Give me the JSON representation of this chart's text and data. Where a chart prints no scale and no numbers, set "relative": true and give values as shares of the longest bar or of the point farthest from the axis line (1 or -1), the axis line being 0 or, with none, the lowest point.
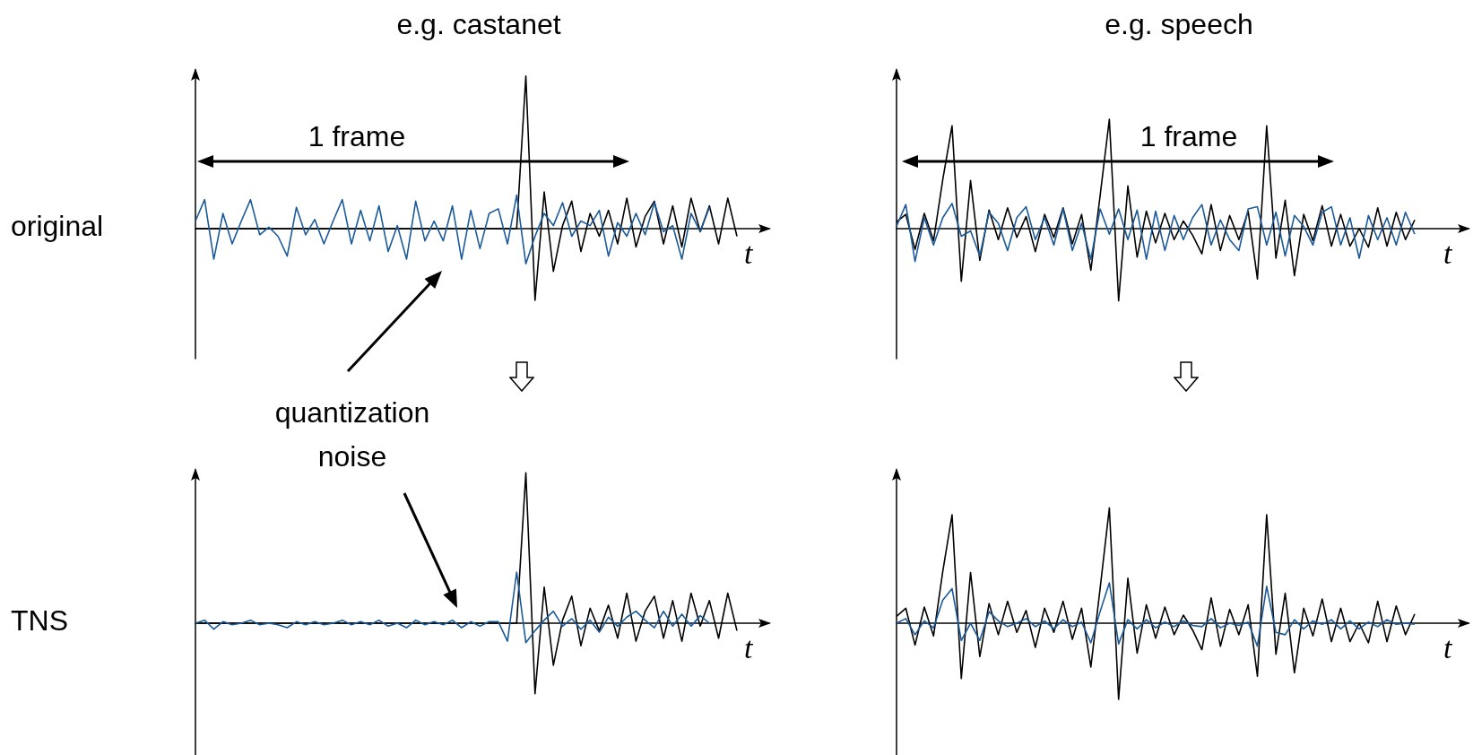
{
  "chart_data": [
    {
      "type": "line",
      "title": "e.g. castanet",
      "ylabel": "original",
      "xlabel": "t",
      "annotations": [
        "1 frame",
        "quantization noise"
      ],
      "relative": true,
      "marker": "none",
      "grid": false,
      "categories": [
        null,
        null,
        null,
        null,
        null,
        null,
        null,
        null,
        null,
        null,
        null,
        null,
        null,
        null,
        null,
        null,
        null,
        null,
        null,
        null,
        null,
        null,
        null,
        null,
        null,
        null,
        null,
        null,
        null,
        null,
        null,
        null,
        null,
        null,
        null,
        null,
        null,
        null,
        null,
        null,
        null,
        null,
        null,
        null,
        null,
        null,
        null,
        null,
        null,
        null,
        null,
        null,
        null,
        null,
        null,
        null,
        null,
        null,
        null,
        null
      ],
      "series": [
        {
          "color": "#000000",
          "values": [
            0,
            0,
            0,
            0,
            0,
            0,
            0,
            0,
            0,
            0,
            0,
            0,
            0,
            0,
            0,
            0,
            0,
            0,
            0,
            0,
            0,
            0,
            0,
            0,
            0,
            0,
            0,
            0,
            0,
            0,
            0,
            0,
            0,
            0,
            0,
            0,
            1,
            -0.47,
            0.24,
            -0.28,
            0.02,
            0.18,
            -0.15,
            0.1,
            -0.05,
            0.12,
            -0.1,
            0.2,
            -0.12,
            0.08,
            0.18,
            -0.1,
            0.15,
            -0.12,
            0.2,
            -0.02,
            0.15,
            -0.1,
            0.2,
            -0.05
          ]
        },
        {
          "color": "#1a5a9a",
          "values": [
            0.05,
            0.19,
            -0.2,
            0.1,
            -0.1,
            0.05,
            0.19,
            -0.04,
            0.01,
            -0.05,
            -0.18,
            0.14,
            -0.04,
            0.06,
            -0.1,
            0.05,
            0.19,
            -0.1,
            0.12,
            -0.08,
            0.15,
            -0.15,
            0.02,
            -0.2,
            0.18,
            -0.08,
            0.05,
            -0.08,
            0.15,
            -0.2,
            0.12,
            -0.13,
            0.1,
            0.13,
            -0.1,
            0.22,
            -0.23,
            -0.05,
            0.1,
            0.02,
            0.17,
            -0.05,
            0.05,
            0.02,
            0.12,
            -0.18,
            0.04,
            -0.05,
            0.1,
            -0.04,
            0.17,
            -0.02,
            0.02,
            -0.2,
            0.1,
            -0.02,
            0.14,
            null,
            null,
            null
          ]
        }
      ]
    },
    {
      "type": "line",
      "title": "e.g. speech",
      "xlabel": "t",
      "annotations": [
        "1 frame"
      ],
      "relative": true,
      "marker": "none",
      "grid": false,
      "categories": [
        null,
        null,
        null,
        null,
        null,
        null,
        null,
        null,
        null,
        null,
        null,
        null,
        null,
        null,
        null,
        null,
        null,
        null,
        null,
        null,
        null,
        null,
        null,
        null,
        null,
        null,
        null,
        null,
        null,
        null,
        null,
        null,
        null,
        null,
        null,
        null,
        null,
        null,
        null,
        null,
        null,
        null,
        null,
        null,
        null,
        null,
        null,
        null,
        null,
        null,
        null,
        null,
        null,
        null,
        null,
        null,
        null
      ],
      "series": [
        {
          "color": "#000000",
          "values": [
            0.06,
            0.13,
            -0.19,
            0.14,
            -0.11,
            0.45,
            0.94,
            -0.48,
            0.44,
            -0.29,
            0.17,
            -0.1,
            0.19,
            -0.08,
            0.11,
            -0.21,
            0.13,
            -0.08,
            0.19,
            -0.14,
            0.13,
            -0.38,
            0.3,
            1,
            -0.66,
            0.39,
            -0.26,
            0.16,
            -0.13,
            0.14,
            -0.1,
            0.07,
            -0.06,
            -0.23,
            0.22,
            -0.2,
            0.12,
            -0.1,
            0.16,
            -0.46,
            0.94,
            -0.27,
            0.26,
            -0.43,
            0.13,
            -0.11,
            0.21,
            -0.16,
            0.13,
            -0.16,
            0,
            -0.17,
            0.19,
            -0.16,
            0.15,
            -0.1,
            0.08
          ]
        },
        {
          "color": "#1a5a9a",
          "values": [
            0.02,
            0.22,
            -0.3,
            0.1,
            -0.15,
            0.1,
            0.23,
            -0.07,
            -0.02,
            -0.25,
            0.15,
            0.05,
            -0.2,
            0.1,
            0.2,
            -0.1,
            0.1,
            -0.15,
            0.18,
            -0.2,
            0.05,
            -0.28,
            0.18,
            -0.05,
            0.18,
            -0.1,
            0.17,
            -0.28,
            0.16,
            -0.2,
            0.12,
            -0.1,
            0.1,
            0.22,
            -0.15,
            0.08,
            -0.1,
            -0.2,
            0.18,
            0.2,
            -0.15,
            0.15,
            -0.25,
            0.12,
            0.02,
            -0.15,
            0.15,
            0.2,
            -0.15,
            0.1,
            -0.27,
            0.12,
            -0.1,
            0.1,
            -0.15,
            0.15,
            -0.05
          ]
        }
      ]
    },
    {
      "type": "line",
      "ylabel": "TNS",
      "xlabel": "t",
      "relative": true,
      "marker": "none",
      "grid": false,
      "categories": [
        null,
        null,
        null,
        null,
        null,
        null,
        null,
        null,
        null,
        null,
        null,
        null,
        null,
        null,
        null,
        null,
        null,
        null,
        null,
        null,
        null,
        null,
        null,
        null,
        null,
        null,
        null,
        null,
        null,
        null,
        null,
        null,
        null,
        null,
        null,
        null,
        null,
        null,
        null,
        null,
        null,
        null,
        null,
        null,
        null,
        null,
        null,
        null,
        null,
        null,
        null,
        null,
        null,
        null,
        null,
        null,
        null,
        null,
        null,
        null
      ],
      "series": [
        {
          "color": "#000000",
          "values": [
            0,
            0,
            0,
            0,
            0,
            0,
            0,
            0,
            0,
            0,
            0,
            0,
            0,
            0,
            0,
            0,
            0,
            0,
            0,
            0,
            0,
            0,
            0,
            0,
            0,
            0,
            0,
            0,
            0,
            0,
            0,
            0,
            0,
            0,
            0,
            0,
            1,
            -0.47,
            0.24,
            -0.28,
            0.02,
            0.18,
            -0.15,
            0.1,
            -0.05,
            0.12,
            -0.1,
            0.2,
            -0.12,
            0.08,
            0.18,
            -0.1,
            0.15,
            -0.12,
            0.2,
            -0.02,
            0.15,
            -0.1,
            0.2,
            -0.05
          ]
        },
        {
          "color": "#1a5a9a",
          "values": [
            0,
            0.02,
            -0.04,
            0.01,
            -0.01,
            0,
            0.02,
            -0.01,
            0,
            -0.01,
            -0.03,
            0.01,
            -0.01,
            0.01,
            -0.01,
            0,
            0.02,
            -0.01,
            0.01,
            -0.01,
            0.02,
            -0.02,
            0,
            -0.03,
            0.02,
            -0.01,
            0.01,
            -0.01,
            0.02,
            -0.03,
            0.01,
            -0.02,
            0.01,
            0.01,
            -0.12,
            0.34,
            -0.13,
            -0.05,
            0.02,
            0.08,
            -0.02,
            0.03,
            -0.04,
            0.02,
            -0.06,
            0.04,
            -0.02,
            0.04,
            0.08,
            0.02,
            -0.03,
            0.08,
            -0.02,
            0.06,
            -0.02,
            0.05,
            0,
            null,
            null,
            null
          ]
        }
      ]
    },
    {
      "type": "line",
      "xlabel": "t",
      "relative": true,
      "marker": "none",
      "grid": false,
      "categories": [
        null,
        null,
        null,
        null,
        null,
        null,
        null,
        null,
        null,
        null,
        null,
        null,
        null,
        null,
        null,
        null,
        null,
        null,
        null,
        null,
        null,
        null,
        null,
        null,
        null,
        null,
        null,
        null,
        null,
        null,
        null,
        null,
        null,
        null,
        null,
        null,
        null,
        null,
        null,
        null,
        null,
        null,
        null,
        null,
        null,
        null,
        null,
        null,
        null,
        null,
        null,
        null,
        null,
        null,
        null,
        null,
        null
      ],
      "series": [
        {
          "color": "#000000",
          "values": [
            0.06,
            0.13,
            -0.19,
            0.14,
            -0.11,
            0.45,
            0.94,
            -0.48,
            0.44,
            -0.29,
            0.17,
            -0.1,
            0.19,
            -0.08,
            0.11,
            -0.21,
            0.13,
            -0.08,
            0.19,
            -0.14,
            0.13,
            -0.38,
            0.3,
            1,
            -0.66,
            0.39,
            -0.26,
            0.16,
            -0.13,
            0.14,
            -0.1,
            0.07,
            -0.06,
            -0.23,
            0.22,
            -0.2,
            0.12,
            -0.1,
            0.16,
            -0.46,
            0.94,
            -0.27,
            0.26,
            -0.43,
            0.13,
            -0.11,
            0.21,
            -0.16,
            0.13,
            -0.16,
            0,
            -0.17,
            0.19,
            -0.16,
            0.15,
            -0.1,
            0.08
          ]
        },
        {
          "color": "#1a5a9a",
          "values": [
            0,
            0.04,
            -0.1,
            0.02,
            -0.04,
            0.2,
            0.3,
            -0.15,
            0,
            -0.15,
            0.1,
            0.02,
            -0.03,
            0,
            0.04,
            -0.03,
            0.02,
            -0.05,
            0.03,
            -0.03,
            0.01,
            -0.17,
            0.1,
            0.35,
            -0.18,
            0.03,
            -0.05,
            0.03,
            -0.04,
            0.01,
            -0.03,
            0.02,
            -0.02,
            -0.03,
            0.04,
            -0.04,
            0,
            -0.02,
            0.01,
            -0.2,
            0.32,
            -0.08,
            -0.1,
            0.03,
            -0.05,
            0.02,
            -0.01,
            0.03,
            -0.05,
            0.02,
            -0.05,
            0.01,
            -0.03,
            0.03,
            -0.01,
            0,
            -0.01
          ]
        }
      ]
    }
  ]
}
